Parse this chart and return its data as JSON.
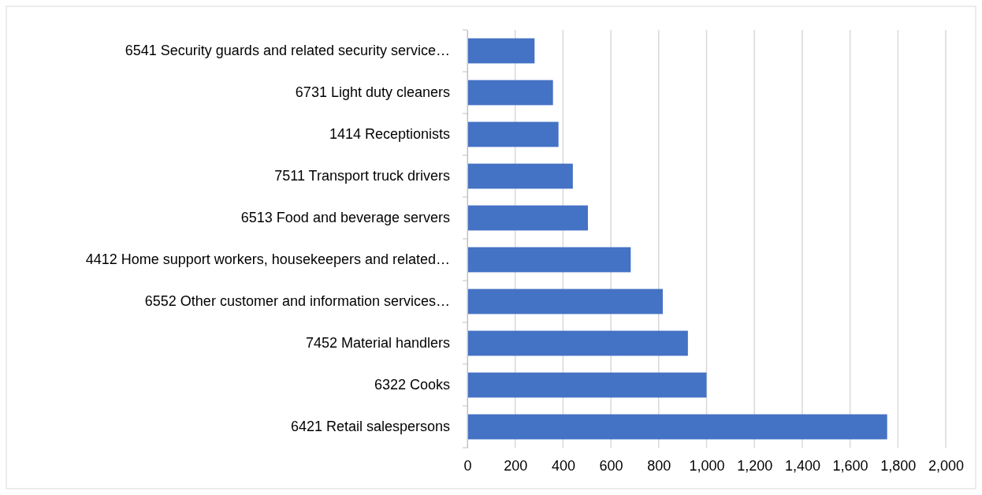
{
  "chart_data": {
    "type": "bar",
    "orientation": "horizontal",
    "categories": [
      "6541 Security guards and related security service…",
      "6731 Light duty cleaners",
      "1414 Receptionists",
      "7511 Transport truck drivers",
      "6513 Food and beverage servers",
      "4412 Home support workers, housekeepers and related…",
      "6552 Other customer and information services…",
      "7452 Material handlers",
      "6322 Cooks",
      "6421 Retail salespersons"
    ],
    "values": [
      281,
      358,
      381,
      441,
      504,
      683,
      817,
      922,
      1000,
      1755
    ],
    "color": "#4472c4",
    "xlim": [
      0,
      2000
    ],
    "xticks": [
      0,
      {
        "value": 200,
        "label": "200"
      },
      {
        "value": 400,
        "label": "400"
      },
      {
        "value": 600,
        "label": "600"
      },
      {
        "value": 800,
        "label": "800"
      },
      {
        "value": 1000,
        "label": "1,000"
      },
      {
        "value": 1200,
        "label": "1,200"
      },
      {
        "value": 1400,
        "label": "1,400"
      },
      {
        "value": 1600,
        "label": "1,600"
      },
      {
        "value": 1800,
        "label": "1,800"
      },
      {
        "value": 2000,
        "label": "2,000"
      }
    ],
    "grid": "x"
  }
}
